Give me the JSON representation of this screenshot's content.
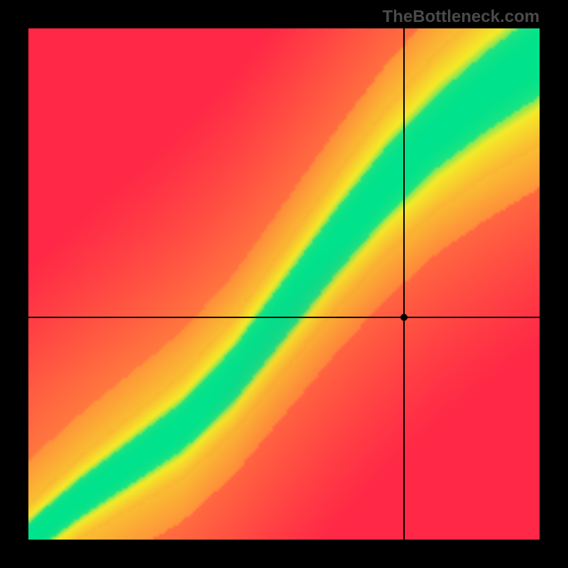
{
  "watermark": {
    "text": "TheBottleneck.com",
    "color": "#4a4a4a",
    "fontsize": 24,
    "font_weight": "bold"
  },
  "frame": {
    "outer_size": 800,
    "border_width": 40,
    "border_color": "#000000",
    "inner_size": 720
  },
  "heatmap": {
    "type": "heatmap",
    "resolution": 180,
    "background_color": "#000000",
    "gradient_colors": {
      "red": "#ff2846",
      "orange": "#ff8f3c",
      "yellow": "#f5eb28",
      "green": "#00e28c"
    },
    "optimal_curve": {
      "description": "Diagonal S-curve where green band indicates balanced bottleneck",
      "curve_points_normalized": [
        {
          "x": 0.0,
          "y": 0.0
        },
        {
          "x": 0.1,
          "y": 0.08
        },
        {
          "x": 0.2,
          "y": 0.15
        },
        {
          "x": 0.3,
          "y": 0.22
        },
        {
          "x": 0.4,
          "y": 0.32
        },
        {
          "x": 0.5,
          "y": 0.45
        },
        {
          "x": 0.6,
          "y": 0.58
        },
        {
          "x": 0.7,
          "y": 0.7
        },
        {
          "x": 0.8,
          "y": 0.8
        },
        {
          "x": 0.9,
          "y": 0.88
        },
        {
          "x": 1.0,
          "y": 0.95
        }
      ],
      "green_band_halfwidth_normalized": 0.055,
      "yellow_band_halfwidth_normalized": 0.12
    }
  },
  "crosshair": {
    "x_normalized": 0.735,
    "y_normalized": 0.435,
    "line_color": "#000000",
    "line_width": 2,
    "dot_radius": 5,
    "dot_color": "#000000"
  }
}
